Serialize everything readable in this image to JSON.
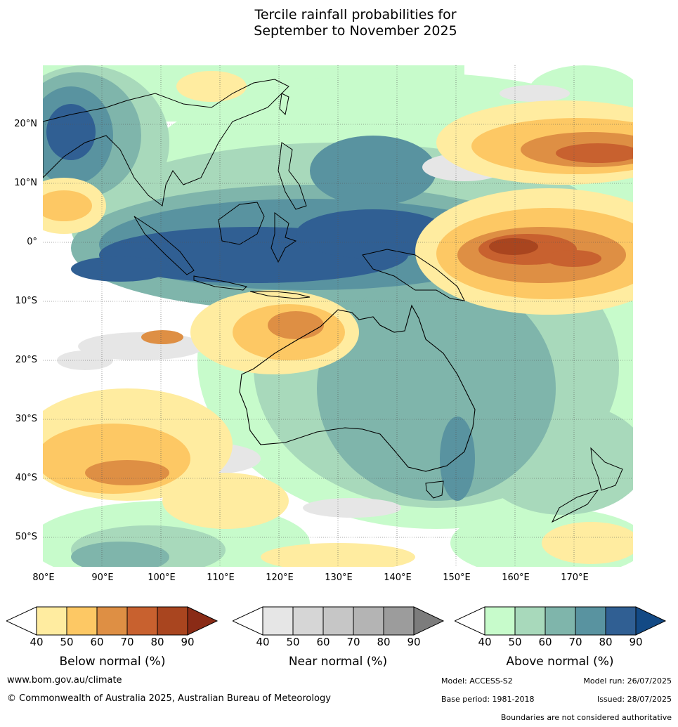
{
  "title": {
    "line1": "Tercile rainfall probabilities for",
    "line2": "September to November 2025"
  },
  "map": {
    "lat_labels": [
      "20°N",
      "10°N",
      "0°",
      "10°S",
      "20°S",
      "30°S",
      "40°S",
      "50°S"
    ],
    "lon_labels": [
      "80°E",
      "90°E",
      "100°E",
      "110°E",
      "120°E",
      "130°E",
      "140°E",
      "150°E",
      "160°E",
      "170°E"
    ],
    "colors": {
      "below": [
        "#ffeca0",
        "#fdc864",
        "#de8f44",
        "#c8612f",
        "#a9451f",
        "#8a2b16"
      ],
      "near": [
        "#e6e6e6",
        "#d6d6d6",
        "#c6c6c6",
        "#b4b4b4",
        "#9c9c9c",
        "#7c7c7c"
      ],
      "above": [
        "#c7fbcb",
        "#a8d9bb",
        "#7fb5ab",
        "#5993a0",
        "#305f93",
        "#134a85"
      ]
    }
  },
  "legends": {
    "below": {
      "label": "Below normal (%)",
      "ticks": [
        "40",
        "50",
        "60",
        "70",
        "80",
        "90"
      ]
    },
    "near": {
      "label": "Near normal (%)",
      "ticks": [
        "40",
        "50",
        "60",
        "70",
        "80",
        "90"
      ]
    },
    "above": {
      "label": "Above normal (%)",
      "ticks": [
        "40",
        "50",
        "60",
        "70",
        "80",
        "90"
      ]
    }
  },
  "footer": {
    "website": "www.bom.gov.au/climate",
    "copyright": "© Commonwealth of Australia 2025, Australian Bureau of Meteorology",
    "model": "Model: ACCESS-S2",
    "model_run": "Model run: 26/07/2025",
    "base_period": "Base period: 1981-2018",
    "issued": "Issued: 28/07/2025",
    "disclaimer": "Boundaries are not considered authoritative"
  }
}
